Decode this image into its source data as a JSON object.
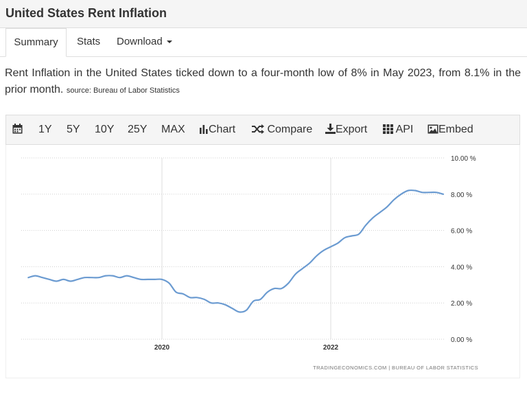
{
  "page_title": "United States Rent Inflation",
  "tabs": [
    {
      "label": "Summary"
    },
    {
      "label": "Stats"
    },
    {
      "label": "Download"
    }
  ],
  "description": {
    "text": "Rent Inflation in the United States ticked down to a four-month low of 8% in May 2023, from 8.1% in the prior month.",
    "source": "source: Bureau of Labor Statistics"
  },
  "toolbar": {
    "ranges": [
      "1Y",
      "5Y",
      "10Y",
      "25Y",
      "MAX"
    ],
    "chart_label": "Chart",
    "compare_label": "Compare",
    "export_label": "Export",
    "api_label": "API",
    "embed_label": "Embed",
    "icons": [
      "calendar-icon",
      "bar-chart-icon",
      "shuffle-icon",
      "download-icon",
      "grid-icon",
      "image-icon"
    ]
  },
  "chart_data": {
    "type": "line",
    "title": "",
    "xlabel": "",
    "ylabel": "",
    "x_ticks": [
      "2020",
      "2022"
    ],
    "y_ticks": [
      "10.00 %",
      "8.00 %",
      "6.00 %",
      "4.00 %",
      "2.00 %",
      "0.00 %"
    ],
    "ylim": [
      0,
      10
    ],
    "grid": true,
    "credit": "TRADINGECONOMICS.COM  |  BUREAU OF LABOR STATISTICS",
    "line_color": "#6b9bd1",
    "series": [
      {
        "x": [
          "2018-06",
          "2018-07",
          "2018-08",
          "2018-09",
          "2018-10",
          "2018-11",
          "2018-12",
          "2019-01",
          "2019-02",
          "2019-03",
          "2019-04",
          "2019-05",
          "2019-06",
          "2019-07",
          "2019-08",
          "2019-09",
          "2019-10",
          "2019-11",
          "2019-12",
          "2020-01",
          "2020-02",
          "2020-03",
          "2020-04",
          "2020-05",
          "2020-06",
          "2020-07",
          "2020-08",
          "2020-09",
          "2020-10",
          "2020-11",
          "2020-12",
          "2021-01",
          "2021-02",
          "2021-03",
          "2021-04",
          "2021-05",
          "2021-06",
          "2021-07",
          "2021-08",
          "2021-09",
          "2021-10",
          "2021-11",
          "2021-12",
          "2022-01",
          "2022-02",
          "2022-03",
          "2022-04",
          "2022-05",
          "2022-06",
          "2022-07",
          "2022-08",
          "2022-09",
          "2022-10",
          "2022-11",
          "2022-12",
          "2023-01",
          "2023-02",
          "2023-03",
          "2023-04",
          "2023-05"
        ],
        "values": [
          3.4,
          3.5,
          3.4,
          3.3,
          3.2,
          3.3,
          3.2,
          3.3,
          3.4,
          3.4,
          3.4,
          3.5,
          3.5,
          3.4,
          3.5,
          3.4,
          3.3,
          3.3,
          3.3,
          3.3,
          3.1,
          2.6,
          2.5,
          2.3,
          2.3,
          2.2,
          2.0,
          2.0,
          1.9,
          1.7,
          1.5,
          1.6,
          2.1,
          2.2,
          2.6,
          2.8,
          2.8,
          3.1,
          3.6,
          3.9,
          4.2,
          4.6,
          4.9,
          5.1,
          5.3,
          5.6,
          5.7,
          5.8,
          6.3,
          6.7,
          7.0,
          7.3,
          7.7,
          8.0,
          8.2,
          8.2,
          8.1,
          8.1,
          8.1,
          8.0
        ]
      }
    ]
  }
}
